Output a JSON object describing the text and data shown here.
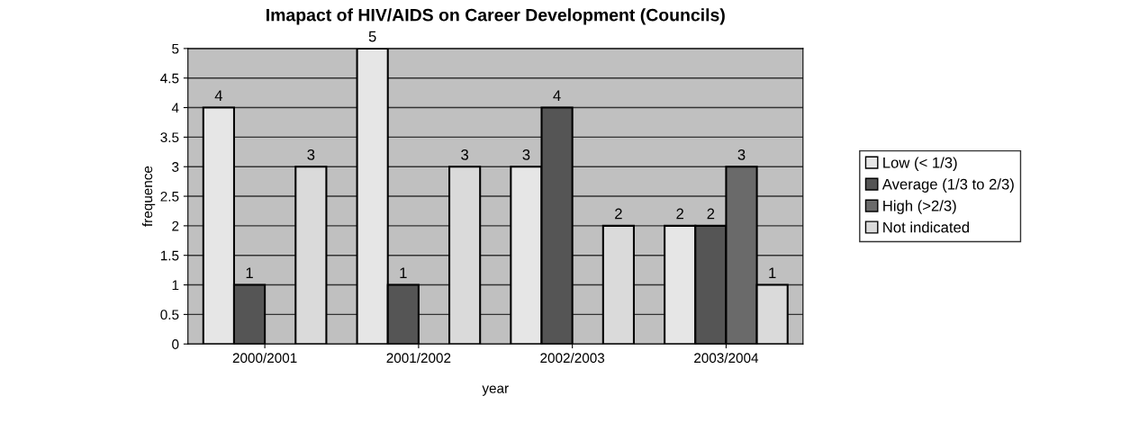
{
  "chart_data": {
    "type": "bar",
    "title": "Imapact of HIV/AIDS on Career Development (Councils)",
    "xlabel": "year",
    "ylabel": "frequence",
    "categories": [
      "2000/2001",
      "2001/2002",
      "2002/2003",
      "2003/2004"
    ],
    "series": [
      {
        "name": "Low (< 1/3)",
        "color": "#e6e6e6",
        "values": [
          4,
          5,
          3,
          2
        ]
      },
      {
        "name": "Average (1/3 to 2/3)",
        "color": "#555555",
        "values": [
          1,
          1,
          4,
          2
        ]
      },
      {
        "name": "High (>2/3)",
        "color": "#6a6a6a",
        "values": [
          null,
          null,
          null,
          3
        ]
      },
      {
        "name": "Not indicated",
        "color": "#dadada",
        "values": [
          3,
          3,
          2,
          1
        ]
      }
    ],
    "ylim": [
      0,
      5
    ],
    "yticks": [
      0,
      0.5,
      1,
      1.5,
      2,
      2.5,
      3,
      3.5,
      4,
      4.5,
      5
    ],
    "grid": "y",
    "legend": "right",
    "data_labels": true
  }
}
